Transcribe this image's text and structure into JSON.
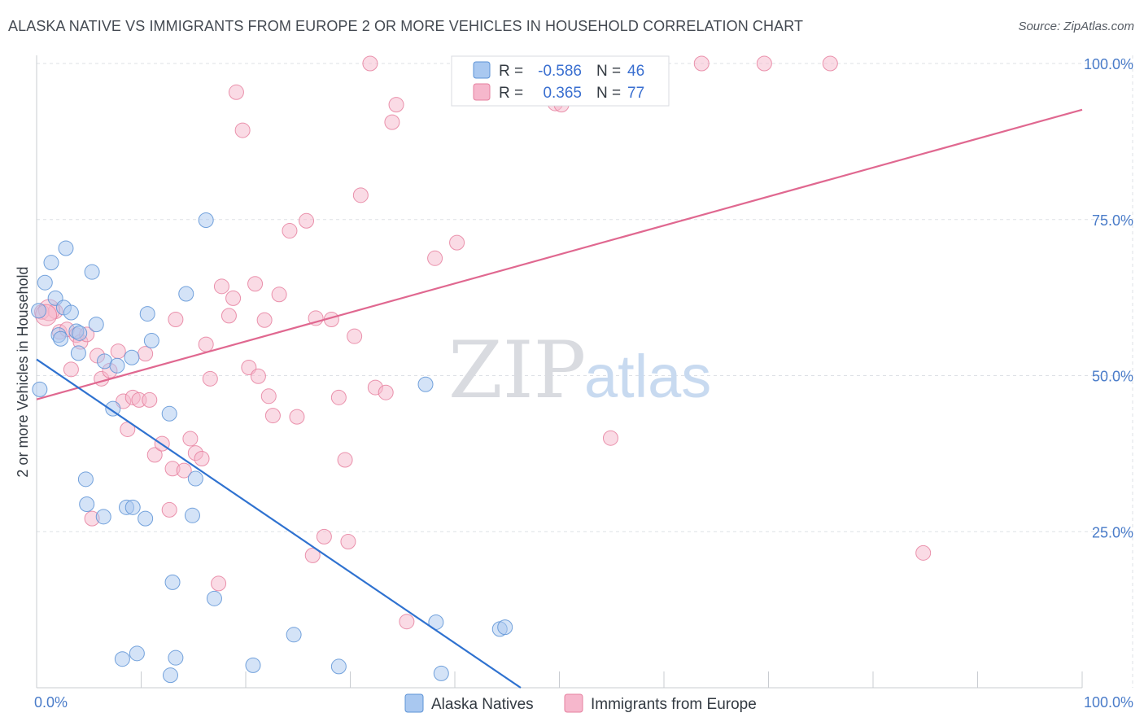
{
  "title": "ALASKA NATIVE VS IMMIGRANTS FROM EUROPE 2 OR MORE VEHICLES IN HOUSEHOLD CORRELATION CHART",
  "source": "Source: ZipAtlas.com",
  "colors": {
    "blue_fill": "#a9c8f0",
    "blue_stroke": "#5d93d6",
    "blue_line": "#2f72d0",
    "pink_fill": "#f6b7cc",
    "pink_stroke": "#e6809f",
    "pink_line": "#e06890",
    "grid": "#dde1e6",
    "tick": "#4a7cc9"
  },
  "chart_data": {
    "type": "scatter",
    "title": "ALASKA NATIVE VS IMMIGRANTS FROM EUROPE 2 OR MORE VEHICLES IN HOUSEHOLD CORRELATION CHART",
    "xlabel": "",
    "ylabel": "2 or more Vehicles in Household",
    "xlim": [
      0,
      100
    ],
    "ylim": [
      0,
      100
    ],
    "x_tick_labels": [
      "0.0%",
      "100.0%"
    ],
    "y_ticks": [
      25,
      50,
      75,
      100
    ],
    "y_tick_labels": [
      "25.0%",
      "50.0%",
      "75.0%",
      "100.0%"
    ],
    "grid": true,
    "watermark": {
      "part1": "ZIP",
      "part2": "atlas"
    },
    "stats_box": {
      "r_label": "R =",
      "n_label": "N =",
      "rows": [
        {
          "r": "-0.586",
          "n": "46"
        },
        {
          "r": "0.365",
          "n": "77"
        }
      ]
    },
    "series": [
      {
        "name": "Alaska Natives",
        "color": "blue",
        "trend": {
          "x0": 0,
          "y0": 52.6,
          "x1": 46.3,
          "y1": 0
        },
        "points": [
          [
            0.3,
            47.8
          ],
          [
            0.8,
            64.9
          ],
          [
            1.4,
            68.1
          ],
          [
            1.8,
            62.4
          ],
          [
            2.1,
            56.5
          ],
          [
            2.3,
            55.9
          ],
          [
            2.6,
            60.9
          ],
          [
            2.8,
            70.4
          ],
          [
            3.3,
            60.1
          ],
          [
            3.8,
            57.1
          ],
          [
            4.0,
            53.6
          ],
          [
            4.1,
            56.8
          ],
          [
            4.7,
            33.4
          ],
          [
            4.8,
            29.4
          ],
          [
            5.3,
            66.6
          ],
          [
            5.7,
            58.2
          ],
          [
            6.4,
            27.4
          ],
          [
            6.5,
            52.3
          ],
          [
            7.3,
            44.7
          ],
          [
            7.7,
            51.6
          ],
          [
            8.2,
            4.6
          ],
          [
            8.6,
            28.9
          ],
          [
            9.1,
            52.9
          ],
          [
            9.2,
            28.9
          ],
          [
            9.6,
            5.5
          ],
          [
            10.4,
            27.1
          ],
          [
            10.6,
            59.9
          ],
          [
            11.0,
            55.6
          ],
          [
            12.7,
            43.9
          ],
          [
            12.8,
            2.0
          ],
          [
            13.0,
            16.9
          ],
          [
            13.3,
            4.8
          ],
          [
            14.3,
            63.1
          ],
          [
            14.9,
            27.6
          ],
          [
            15.2,
            33.5
          ],
          [
            16.2,
            74.9
          ],
          [
            17.0,
            14.3
          ],
          [
            20.7,
            3.6
          ],
          [
            24.6,
            8.5
          ],
          [
            28.9,
            3.4
          ],
          [
            37.2,
            48.6
          ],
          [
            38.2,
            10.5
          ],
          [
            38.7,
            2.3
          ],
          [
            44.3,
            9.4
          ],
          [
            44.8,
            9.7
          ],
          [
            0.2,
            60.4
          ]
        ]
      },
      {
        "name": "Immigrants from Europe",
        "color": "pink",
        "trend": {
          "x0": 0,
          "y0": 46.2,
          "x1": 100,
          "y1": 92.6
        },
        "points": [
          [
            0.5,
            60.2
          ],
          [
            1.8,
            60.3
          ],
          [
            2.2,
            57.0
          ],
          [
            2.9,
            57.4
          ],
          [
            3.3,
            51.0
          ],
          [
            3.8,
            56.5
          ],
          [
            4.2,
            55.4
          ],
          [
            4.8,
            56.6
          ],
          [
            5.3,
            27.1
          ],
          [
            5.8,
            53.2
          ],
          [
            6.2,
            49.5
          ],
          [
            7.0,
            50.8
          ],
          [
            7.8,
            53.9
          ],
          [
            8.3,
            45.9
          ],
          [
            8.7,
            41.4
          ],
          [
            9.2,
            46.5
          ],
          [
            9.8,
            46.1
          ],
          [
            10.4,
            53.5
          ],
          [
            10.8,
            46.1
          ],
          [
            11.3,
            37.3
          ],
          [
            12.0,
            39.1
          ],
          [
            12.7,
            28.5
          ],
          [
            13.0,
            35.1
          ],
          [
            13.3,
            59.0
          ],
          [
            14.1,
            34.8
          ],
          [
            14.7,
            39.9
          ],
          [
            15.2,
            37.6
          ],
          [
            15.8,
            36.7
          ],
          [
            16.2,
            55.0
          ],
          [
            16.6,
            49.5
          ],
          [
            17.4,
            16.7
          ],
          [
            17.7,
            64.3
          ],
          [
            18.4,
            59.6
          ],
          [
            18.8,
            62.4
          ],
          [
            19.1,
            95.4
          ],
          [
            19.7,
            89.3
          ],
          [
            20.3,
            51.3
          ],
          [
            20.9,
            64.7
          ],
          [
            21.2,
            49.9
          ],
          [
            21.8,
            58.9
          ],
          [
            22.2,
            46.7
          ],
          [
            22.6,
            43.6
          ],
          [
            23.2,
            63.0
          ],
          [
            24.2,
            73.2
          ],
          [
            24.9,
            43.4
          ],
          [
            25.8,
            74.8
          ],
          [
            26.4,
            21.2
          ],
          [
            26.7,
            59.2
          ],
          [
            27.5,
            24.2
          ],
          [
            28.2,
            59.0
          ],
          [
            28.9,
            46.5
          ],
          [
            29.5,
            36.5
          ],
          [
            29.8,
            23.4
          ],
          [
            30.4,
            56.3
          ],
          [
            31.0,
            78.9
          ],
          [
            31.9,
            100.0
          ],
          [
            32.4,
            48.1
          ],
          [
            33.4,
            47.3
          ],
          [
            34.0,
            90.6
          ],
          [
            34.4,
            93.4
          ],
          [
            35.4,
            10.6
          ],
          [
            38.1,
            68.8
          ],
          [
            40.2,
            71.3
          ],
          [
            40.5,
            100.0
          ],
          [
            44.2,
            100.0
          ],
          [
            44.9,
            99.8
          ],
          [
            47.6,
            100.0
          ],
          [
            47.9,
            95.6
          ],
          [
            49.6,
            93.6
          ],
          [
            50.2,
            93.4
          ],
          [
            54.9,
            40.0
          ],
          [
            63.6,
            100.0
          ],
          [
            69.6,
            100.0
          ],
          [
            75.9,
            100.0
          ],
          [
            84.8,
            21.6
          ],
          [
            1.2,
            60.5
          ],
          [
            0.9,
            59.7
          ]
        ]
      }
    ]
  }
}
